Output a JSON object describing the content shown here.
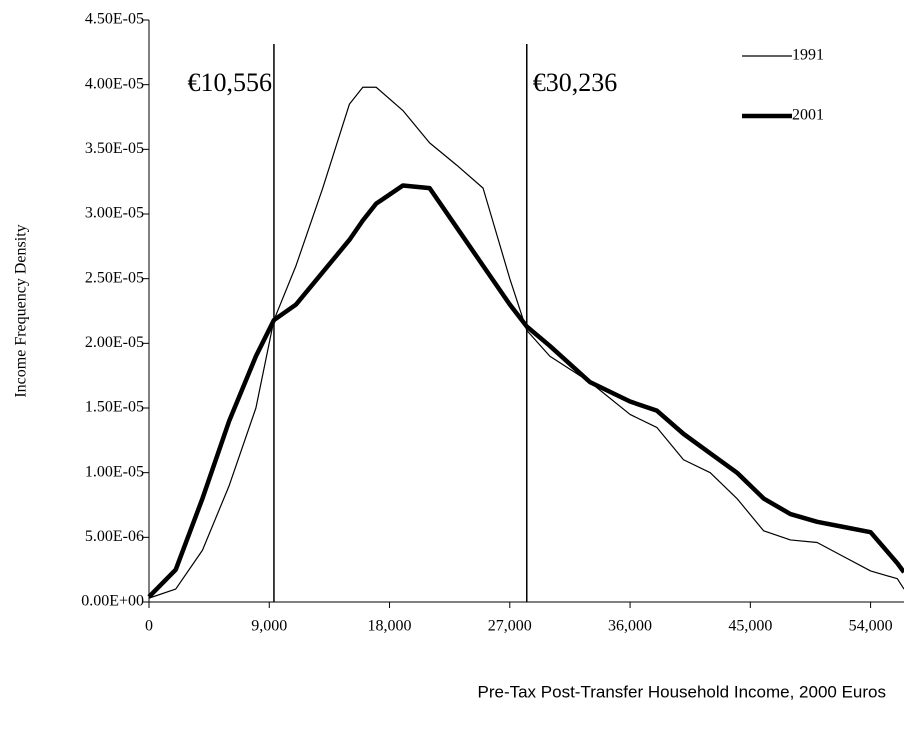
{
  "chart_data": {
    "type": "line",
    "y_label": "Income Frequency Density",
    "x_label": "Pre-Tax Post-Transfer Household Income, 2000 Euros",
    "x": [
      0,
      2000,
      4000,
      6000,
      8000,
      9350,
      11000,
      13000,
      15000,
      16000,
      17000,
      19000,
      21000,
      23000,
      25000,
      27000,
      28270,
      30000,
      33000,
      36000,
      38000,
      40000,
      42000,
      44000,
      46000,
      48000,
      50000,
      52000,
      54000,
      56000,
      56500
    ],
    "series": [
      {
        "name": "1991",
        "color": "#000000",
        "width": 1.2,
        "values": [
          3e-07,
          1e-06,
          4e-06,
          9e-06,
          1.5e-05,
          2.18e-05,
          2.6e-05,
          3.2e-05,
          3.85e-05,
          3.98e-05,
          3.98e-05,
          3.8e-05,
          3.55e-05,
          3.38e-05,
          3.2e-05,
          2.5e-05,
          2.1e-05,
          1.9e-05,
          1.7e-05,
          1.45e-05,
          1.35e-05,
          1.1e-05,
          1e-05,
          8e-06,
          5.5e-06,
          4.8e-06,
          4.6e-06,
          3.5e-06,
          2.4e-06,
          1.8e-06,
          1e-06
        ]
      },
      {
        "name": "2001",
        "color": "#000000",
        "width": 4.5,
        "values": [
          4e-07,
          2.5e-06,
          8e-06,
          1.4e-05,
          1.9e-05,
          2.18e-05,
          2.3e-05,
          2.55e-05,
          2.8e-05,
          2.95e-05,
          3.08e-05,
          3.22e-05,
          3.2e-05,
          2.9e-05,
          2.6e-05,
          2.3e-05,
          2.13e-05,
          1.98e-05,
          1.7e-05,
          1.55e-05,
          1.48e-05,
          1.3e-05,
          1.15e-05,
          1e-05,
          8e-06,
          6.8e-06,
          6.2e-06,
          5.8e-06,
          5.4e-06,
          3e-06,
          2.3e-06
        ]
      }
    ],
    "annotations": [
      {
        "text": "€10,556",
        "x": 9350
      },
      {
        "text": "€30,236",
        "x": 28270
      }
    ],
    "xlim": [
      0,
      56500
    ],
    "xticks": [
      0,
      {
        "value": 9000,
        "label": "9,000"
      },
      {
        "value": 18000,
        "label": "18,000"
      },
      {
        "value": 27000,
        "label": "27,000"
      },
      {
        "value": 36000,
        "label": "36,000"
      },
      {
        "value": 45000,
        "label": "45,000"
      },
      {
        "value": 54000,
        "label": "54,000"
      }
    ],
    "ylim": [
      0,
      4.5e-05
    ],
    "yticks": [
      {
        "value": 0,
        "label": "0.00E+00"
      },
      {
        "value": 5e-06,
        "label": "5.00E-06"
      },
      {
        "value": 1e-05,
        "label": "1.00E-05"
      },
      {
        "value": 1.5e-05,
        "label": "1.50E-05"
      },
      {
        "value": 2e-05,
        "label": "2.00E-05"
      },
      {
        "value": 2.5e-05,
        "label": "2.50E-05"
      },
      {
        "value": 3e-05,
        "label": "3.00E-05"
      },
      {
        "value": 3.5e-05,
        "label": "3.50E-05"
      },
      {
        "value": 4e-05,
        "label": "4.00E-05"
      },
      {
        "value": 4.5e-05,
        "label": "4.50E-05"
      }
    ],
    "grid": false,
    "legend": "top-right"
  }
}
